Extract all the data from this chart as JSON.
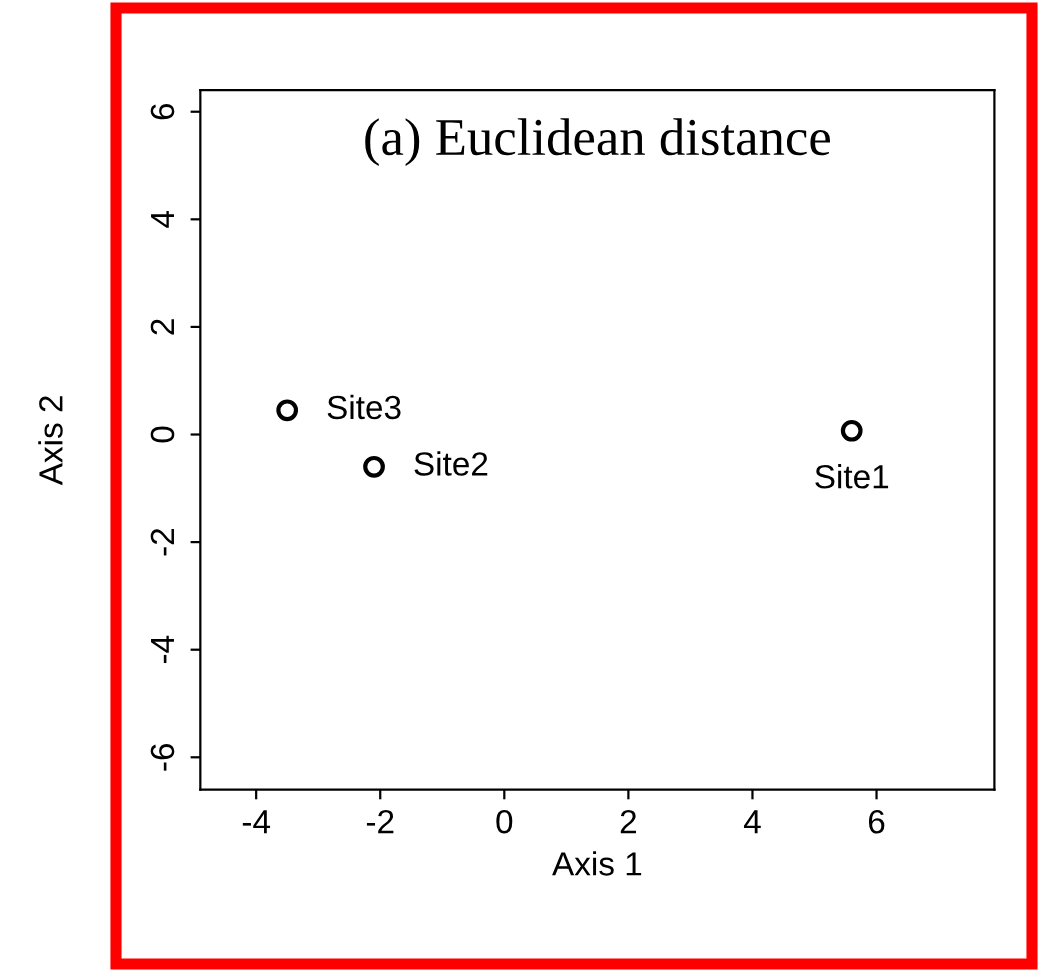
{
  "chart_data": {
    "type": "scatter",
    "title": "(a) Euclidean distance",
    "xlabel": "Axis 1",
    "ylabel": "Axis 2",
    "x": [
      5.6,
      -2.1,
      -3.5
    ],
    "values": [
      0.07,
      -0.6,
      0.45
    ],
    "color": "#000000",
    "marker": "circle",
    "annotations": [
      {
        "text": "Site1",
        "x": 5.6,
        "y": 0.07
      },
      {
        "text": "Site2",
        "x": -2.1,
        "y": -0.6
      },
      {
        "text": "Site3",
        "x": -3.5,
        "y": 0.45
      }
    ],
    "xlim": [
      -4.9,
      7.9
    ],
    "ylim": [
      -6.6,
      6.4
    ],
    "xticks": [
      -4,
      -2,
      0,
      2,
      4,
      6
    ],
    "yticks": [
      -6,
      -4,
      -2,
      0,
      2,
      4,
      6
    ],
    "grid": false,
    "legend": false
  }
}
